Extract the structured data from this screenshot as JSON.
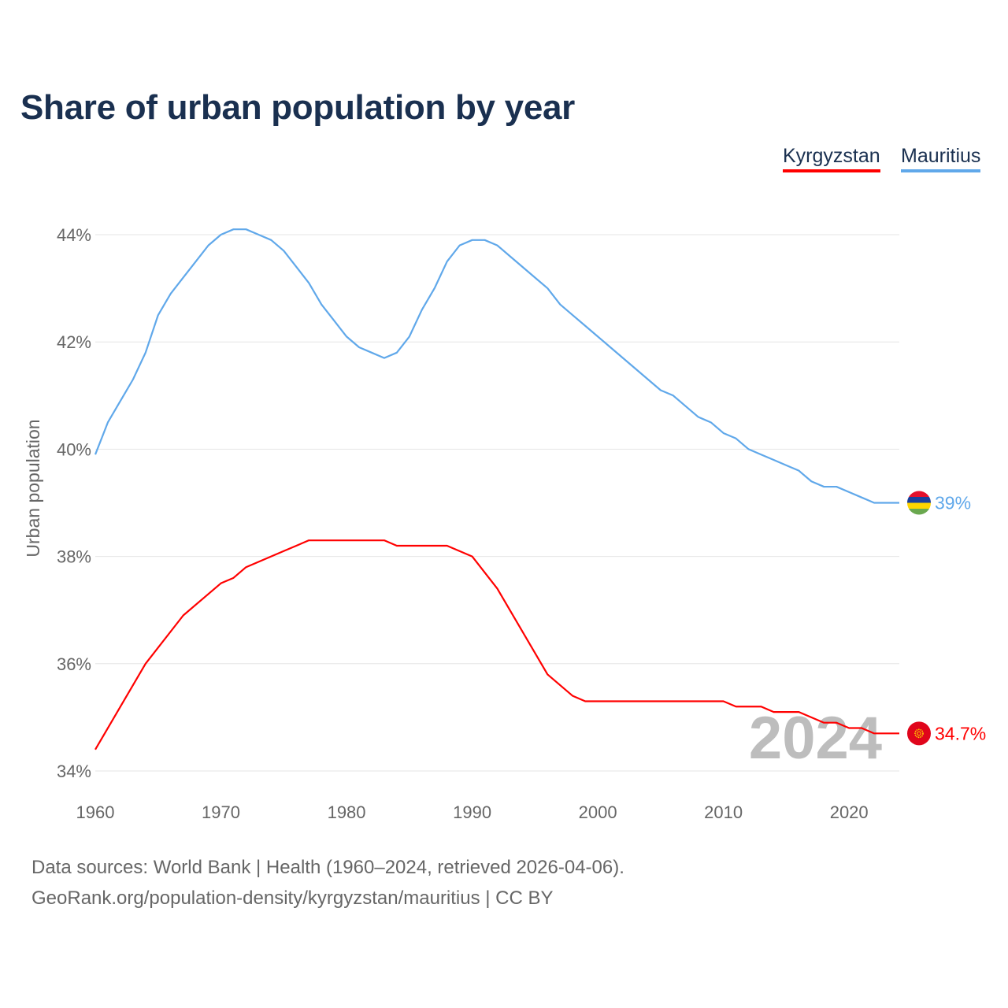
{
  "chart_data": {
    "type": "line",
    "title": "Share of urban population by year",
    "ylabel": "Urban population",
    "xlabel": "",
    "xlim": [
      1960,
      2024
    ],
    "ylim": [
      34,
      44
    ],
    "x_ticks": [
      1960,
      1970,
      1980,
      1990,
      2000,
      2010,
      2020
    ],
    "y_ticks": [
      34,
      36,
      38,
      40,
      42,
      44
    ],
    "y_tick_labels": [
      "34%",
      "36%",
      "38%",
      "40%",
      "42%",
      "44%"
    ],
    "grid": true,
    "legend_position": "top-right",
    "watermark_year": "2024",
    "series": [
      {
        "name": "Kyrgyzstan",
        "color": "#ff0000",
        "end_label": "34.7%",
        "flag": "kyrgyzstan-flag",
        "points": [
          [
            1960,
            34.4
          ],
          [
            1964,
            36.0
          ],
          [
            1967,
            36.9
          ],
          [
            1970,
            37.5
          ],
          [
            1971,
            37.6
          ],
          [
            1972,
            37.8
          ],
          [
            1975,
            38.1
          ],
          [
            1977,
            38.3
          ],
          [
            1983,
            38.3
          ],
          [
            1984,
            38.2
          ],
          [
            1988,
            38.2
          ],
          [
            1990,
            38.0
          ],
          [
            1992,
            37.4
          ],
          [
            1996,
            35.8
          ],
          [
            1998,
            35.4
          ],
          [
            1999,
            35.3
          ],
          [
            2010,
            35.3
          ],
          [
            2011,
            35.2
          ],
          [
            2013,
            35.2
          ],
          [
            2014,
            35.1
          ],
          [
            2016,
            35.1
          ],
          [
            2018,
            34.9
          ],
          [
            2019,
            34.9
          ],
          [
            2020,
            34.8
          ],
          [
            2021,
            34.8
          ],
          [
            2022,
            34.7
          ],
          [
            2024,
            34.7
          ]
        ]
      },
      {
        "name": "Mauritius",
        "color": "#60a8ea",
        "end_label": "39%",
        "flag": "mauritius-flag",
        "points": [
          [
            1960,
            39.9
          ],
          [
            1961,
            40.5
          ],
          [
            1962,
            40.9
          ],
          [
            1963,
            41.3
          ],
          [
            1964,
            41.8
          ],
          [
            1965,
            42.5
          ],
          [
            1966,
            42.9
          ],
          [
            1967,
            43.2
          ],
          [
            1968,
            43.5
          ],
          [
            1969,
            43.8
          ],
          [
            1970,
            44.0
          ],
          [
            1971,
            44.1
          ],
          [
            1972,
            44.1
          ],
          [
            1973,
            44.0
          ],
          [
            1974,
            43.9
          ],
          [
            1975,
            43.7
          ],
          [
            1976,
            43.4
          ],
          [
            1977,
            43.1
          ],
          [
            1978,
            42.7
          ],
          [
            1979,
            42.4
          ],
          [
            1980,
            42.1
          ],
          [
            1981,
            41.9
          ],
          [
            1982,
            41.8
          ],
          [
            1983,
            41.7
          ],
          [
            1984,
            41.8
          ],
          [
            1985,
            42.1
          ],
          [
            1986,
            42.6
          ],
          [
            1987,
            43.0
          ],
          [
            1988,
            43.5
          ],
          [
            1989,
            43.8
          ],
          [
            1990,
            43.9
          ],
          [
            1991,
            43.9
          ],
          [
            1992,
            43.8
          ],
          [
            1993,
            43.6
          ],
          [
            1994,
            43.4
          ],
          [
            1995,
            43.2
          ],
          [
            1996,
            43.0
          ],
          [
            1997,
            42.7
          ],
          [
            1998,
            42.5
          ],
          [
            1999,
            42.3
          ],
          [
            2000,
            42.1
          ],
          [
            2001,
            41.9
          ],
          [
            2002,
            41.7
          ],
          [
            2003,
            41.5
          ],
          [
            2004,
            41.3
          ],
          [
            2005,
            41.1
          ],
          [
            2006,
            41.0
          ],
          [
            2007,
            40.8
          ],
          [
            2008,
            40.6
          ],
          [
            2009,
            40.5
          ],
          [
            2010,
            40.3
          ],
          [
            2011,
            40.2
          ],
          [
            2012,
            40.0
          ],
          [
            2013,
            39.9
          ],
          [
            2014,
            39.8
          ],
          [
            2015,
            39.7
          ],
          [
            2016,
            39.6
          ],
          [
            2017,
            39.4
          ],
          [
            2018,
            39.3
          ],
          [
            2019,
            39.3
          ],
          [
            2020,
            39.2
          ],
          [
            2021,
            39.1
          ],
          [
            2022,
            39.0
          ],
          [
            2023,
            39.0
          ],
          [
            2024,
            39.0
          ]
        ]
      }
    ]
  },
  "footer": {
    "source_line": "Data sources: World Bank | Health (1960–2024, retrieved 2026-04-06).",
    "credit_line": "GeoRank.org/population-density/kyrgyzstan/mauritius | CC BY"
  }
}
